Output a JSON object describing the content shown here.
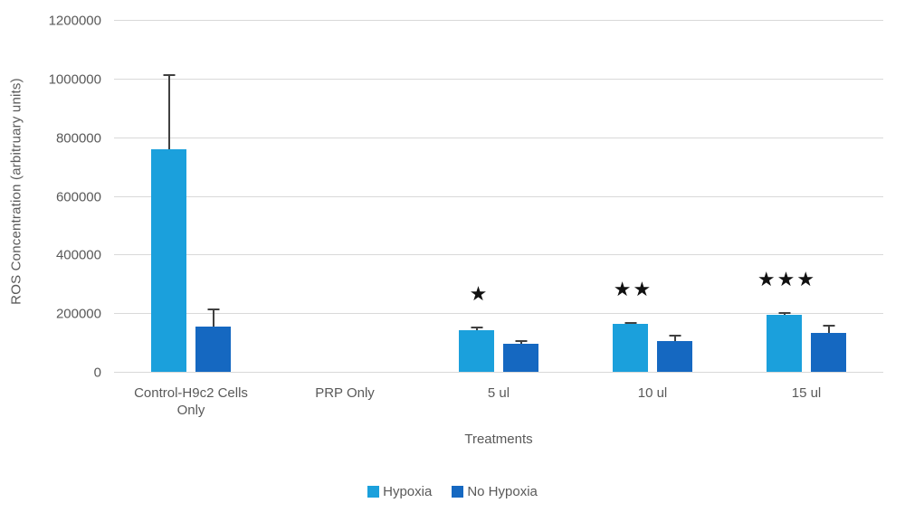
{
  "chart_data": {
    "type": "bar",
    "title": "",
    "ylabel": "ROS Concentration (arbitruary units)",
    "xlabel": "Treatments",
    "categories": [
      "Control-H9c2 Cells Only",
      "PRP Only",
      "5 ul",
      "10 ul",
      "15 ul"
    ],
    "series": [
      {
        "name": "Hypoxia",
        "color": "#1ba0dc",
        "values": [
          760000,
          0,
          143000,
          162000,
          195000
        ],
        "errors": [
          255000,
          0,
          11000,
          8000,
          10000
        ]
      },
      {
        "name": "No Hypoxia",
        "color": "#1568c1",
        "values": [
          155000,
          0,
          95000,
          105000,
          133000
        ],
        "errors": [
          62000,
          0,
          14000,
          22000,
          28000
        ]
      }
    ],
    "annotations": [
      {
        "category_index": 2,
        "series": "Hypoxia",
        "text": "*"
      },
      {
        "category_index": 3,
        "series": "Hypoxia",
        "text": "**"
      },
      {
        "category_index": 4,
        "series": "Hypoxia",
        "text": "***"
      }
    ],
    "ylim": [
      0,
      1200000
    ],
    "yticks": [
      0,
      200000,
      400000,
      600000,
      800000,
      1000000,
      1200000
    ],
    "grid": true,
    "legend_position": "bottom",
    "colors": {
      "gridline": "#d9d9d9",
      "axis_text": "#595959",
      "error_bar": "#404040",
      "annotation": "#111111"
    }
  }
}
